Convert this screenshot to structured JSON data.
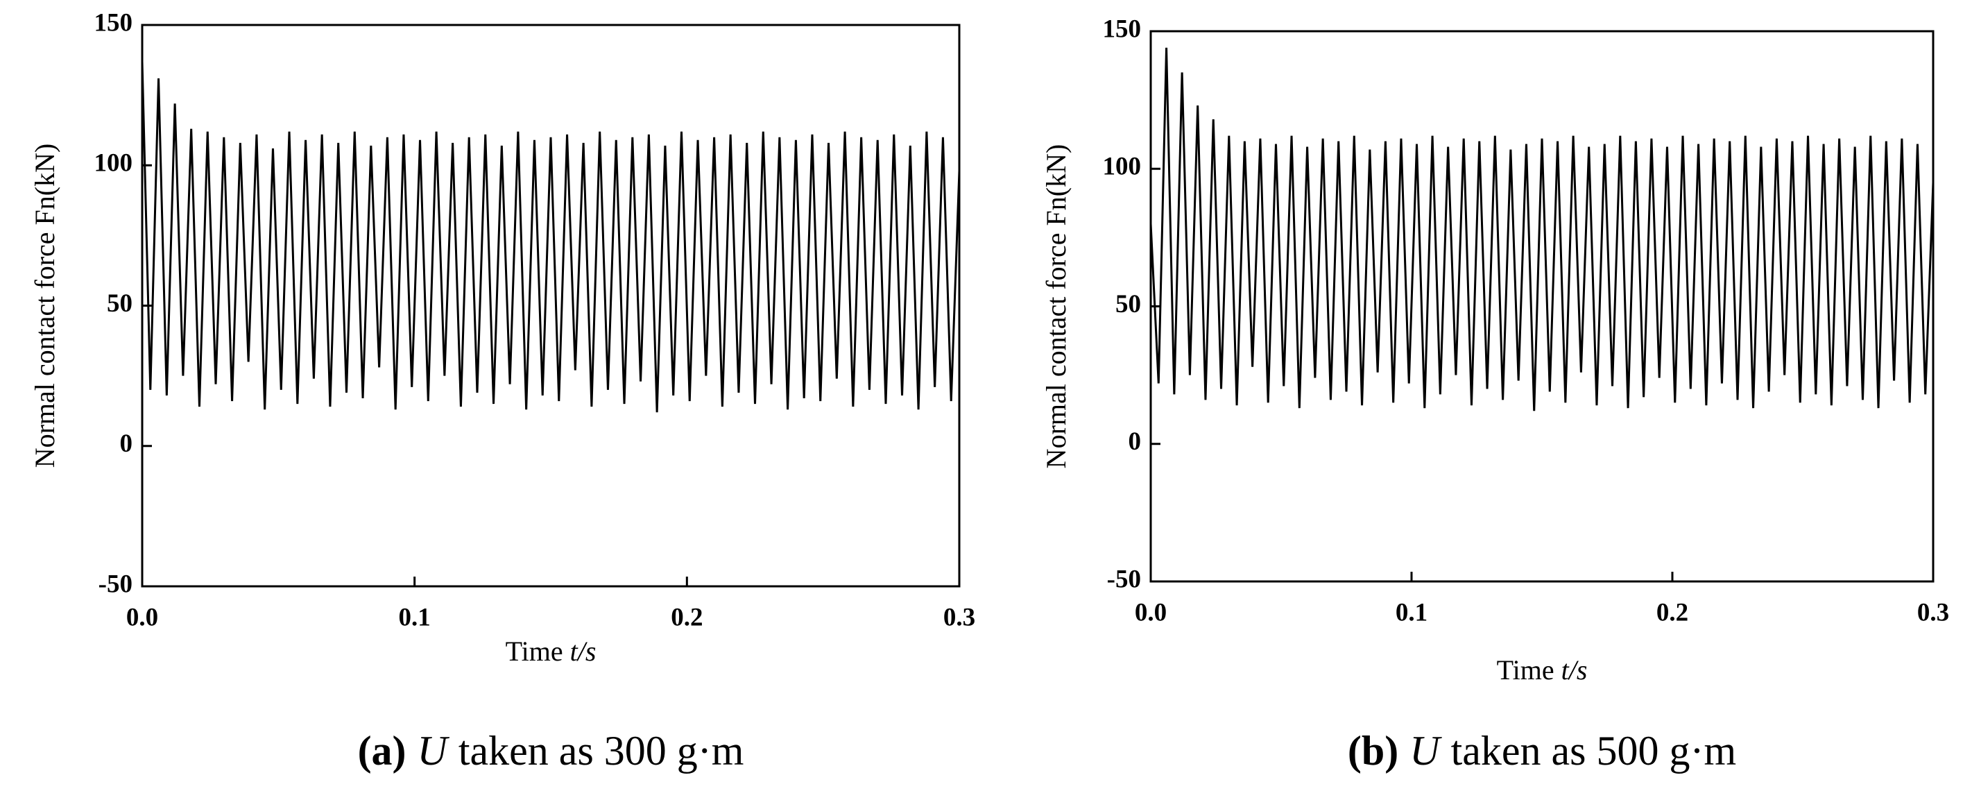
{
  "chart_data": [
    {
      "type": "line",
      "x_label": "Time",
      "x_label_unit": "t/s",
      "y_label": "Normal contact force Fn(kN)",
      "caption_label": "(a)",
      "caption_symbol": "U",
      "caption": "taken as 300 g·m",
      "color": "#000000",
      "xlim": [
        0,
        0.3
      ],
      "xticks": [
        {
          "value": 0,
          "label": "0.0"
        },
        0.1,
        0.2,
        0.3
      ],
      "ylim": [
        -50,
        150
      ],
      "yticks": [
        -50,
        0,
        50,
        100,
        150
      ],
      "x": [
        0,
        0.003,
        0.006,
        0.009,
        0.012,
        0.015,
        0.018,
        0.021,
        0.024,
        0.027,
        0.03,
        0.033,
        0.036,
        0.039,
        0.042,
        0.045,
        0.048,
        0.051,
        0.054,
        0.057,
        0.06,
        0.063,
        0.066,
        0.069,
        0.072,
        0.075,
        0.078,
        0.081,
        0.084,
        0.087,
        0.09,
        0.093,
        0.096,
        0.099,
        0.102,
        0.105,
        0.108,
        0.111,
        0.114,
        0.117,
        0.12,
        0.123,
        0.126,
        0.129,
        0.132,
        0.135,
        0.138,
        0.141,
        0.144,
        0.147,
        0.15,
        0.153,
        0.156,
        0.159,
        0.162,
        0.165,
        0.168,
        0.171,
        0.174,
        0.177,
        0.18,
        0.183,
        0.186,
        0.189,
        0.192,
        0.195,
        0.198,
        0.201,
        0.204,
        0.207,
        0.21,
        0.213,
        0.216,
        0.219,
        0.222,
        0.225,
        0.228,
        0.231,
        0.234,
        0.237,
        0.24,
        0.243,
        0.246,
        0.249,
        0.252,
        0.255,
        0.258,
        0.261,
        0.264,
        0.267,
        0.27,
        0.273,
        0.276,
        0.279,
        0.282,
        0.285,
        0.288,
        0.291,
        0.294,
        0.297,
        0.3
      ],
      "values": [
        137,
        20,
        131,
        18,
        122,
        25,
        113,
        14,
        112,
        22,
        110,
        16,
        108,
        30,
        111,
        13,
        106,
        20,
        112,
        15,
        109,
        24,
        111,
        14,
        108,
        19,
        112,
        17,
        107,
        28,
        110,
        13,
        111,
        21,
        109,
        16,
        112,
        25,
        108,
        14,
        110,
        19,
        111,
        15,
        107,
        22,
        112,
        13,
        109,
        18,
        110,
        16,
        111,
        27,
        108,
        14,
        112,
        20,
        109,
        15,
        110,
        23,
        111,
        12,
        107,
        18,
        112,
        16,
        109,
        25,
        110,
        14,
        111,
        19,
        108,
        15,
        112,
        22,
        110,
        13,
        109,
        17,
        111,
        16,
        108,
        24,
        112,
        14,
        110,
        20,
        109,
        15,
        111,
        18,
        107,
        13,
        112,
        21,
        110,
        16,
        98
      ]
    },
    {
      "type": "line",
      "x_label": "Time",
      "x_label_unit": "t/s",
      "y_label": "Normal contact force Fn(kN)",
      "caption_label": "(b)",
      "caption_symbol": "U",
      "caption": "taken as 500 g·m",
      "color": "#000000",
      "xlim": [
        0,
        0.3
      ],
      "xticks": [
        {
          "value": 0,
          "label": "0.0"
        },
        0.1,
        0.2,
        0.3
      ],
      "ylim": [
        -50,
        150
      ],
      "yticks": [
        -50,
        0,
        50,
        100,
        150
      ],
      "x": [
        0,
        0.003,
        0.006,
        0.009,
        0.012,
        0.015,
        0.018,
        0.021,
        0.024,
        0.027,
        0.03,
        0.033,
        0.036,
        0.039,
        0.042,
        0.045,
        0.048,
        0.051,
        0.054,
        0.057,
        0.06,
        0.063,
        0.066,
        0.069,
        0.072,
        0.075,
        0.078,
        0.081,
        0.084,
        0.087,
        0.09,
        0.093,
        0.096,
        0.099,
        0.102,
        0.105,
        0.108,
        0.111,
        0.114,
        0.117,
        0.12,
        0.123,
        0.126,
        0.129,
        0.132,
        0.135,
        0.138,
        0.141,
        0.144,
        0.147,
        0.15,
        0.153,
        0.156,
        0.159,
        0.162,
        0.165,
        0.168,
        0.171,
        0.174,
        0.177,
        0.18,
        0.183,
        0.186,
        0.189,
        0.192,
        0.195,
        0.198,
        0.201,
        0.204,
        0.207,
        0.21,
        0.213,
        0.216,
        0.219,
        0.222,
        0.225,
        0.228,
        0.231,
        0.234,
        0.237,
        0.24,
        0.243,
        0.246,
        0.249,
        0.252,
        0.255,
        0.258,
        0.261,
        0.264,
        0.267,
        0.27,
        0.273,
        0.276,
        0.279,
        0.282,
        0.285,
        0.288,
        0.291,
        0.294,
        0.297,
        0.3
      ],
      "values": [
        80,
        22,
        144,
        18,
        135,
        25,
        123,
        16,
        118,
        20,
        112,
        14,
        110,
        28,
        111,
        15,
        109,
        21,
        112,
        13,
        108,
        24,
        111,
        16,
        110,
        19,
        112,
        14,
        107,
        26,
        110,
        15,
        111,
        22,
        109,
        13,
        112,
        18,
        108,
        25,
        111,
        14,
        110,
        20,
        112,
        16,
        107,
        23,
        109,
        12,
        111,
        19,
        110,
        15,
        112,
        26,
        108,
        14,
        109,
        21,
        112,
        13,
        110,
        17,
        111,
        24,
        108,
        15,
        112,
        20,
        109,
        14,
        111,
        22,
        110,
        16,
        112,
        13,
        108,
        19,
        111,
        25,
        110,
        15,
        112,
        18,
        109,
        14,
        111,
        21,
        108,
        16,
        112,
        13,
        110,
        23,
        111,
        15,
        109,
        18,
        95
      ]
    }
  ]
}
